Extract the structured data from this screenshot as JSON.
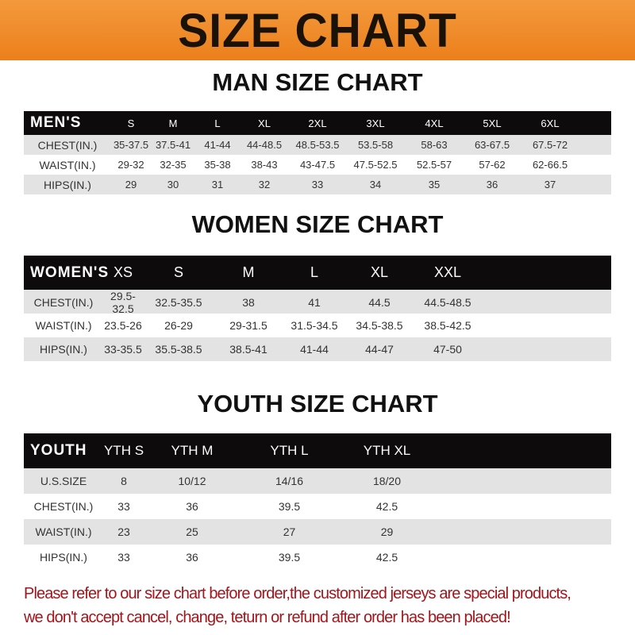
{
  "banner": "SIZE CHART",
  "men": {
    "title": "MAN SIZE CHART",
    "header": [
      "MEN'S",
      "S",
      "M",
      "L",
      "XL",
      "2XL",
      "3XL",
      "4XL",
      "5XL",
      "6XL"
    ],
    "rows": [
      [
        "CHEST(IN.)",
        "35-37.5",
        "37.5-41",
        "41-44",
        "44-48.5",
        "48.5-53.5",
        "53.5-58",
        "58-63",
        "63-67.5",
        "67.5-72"
      ],
      [
        "WAIST(IN.)",
        "29-32",
        "32-35",
        "35-38",
        "38-43",
        "43-47.5",
        "47.5-52.5",
        "52.5-57",
        "57-62",
        "62-66.5"
      ],
      [
        "HIPS(IN.)",
        "29",
        "30",
        "31",
        "32",
        "33",
        "34",
        "35",
        "36",
        "37"
      ]
    ]
  },
  "women": {
    "title": "WOMEN SIZE CHART",
    "header": [
      "WOMEN'S",
      "XS",
      "S",
      "M",
      "L",
      "XL",
      "XXL"
    ],
    "rows": [
      [
        "CHEST(IN.)",
        "29.5-32.5",
        "32.5-35.5",
        "38",
        "41",
        "44.5",
        "44.5-48.5"
      ],
      [
        "WAIST(IN.)",
        "23.5-26",
        "26-29",
        "29-31.5",
        "31.5-34.5",
        "34.5-38.5",
        "38.5-42.5"
      ],
      [
        "HIPS(IN.)",
        "33-35.5",
        "35.5-38.5",
        "38.5-41",
        "41-44",
        "44-47",
        "47-50"
      ]
    ]
  },
  "youth": {
    "title": "YOUTH SIZE CHART",
    "header": [
      "YOUTH",
      "YTH S",
      "YTH M",
      "YTH L",
      "YTH XL"
    ],
    "rows": [
      [
        "U.S.SIZE",
        "8",
        "10/12",
        "14/16",
        "18/20"
      ],
      [
        "CHEST(IN.)",
        "33",
        "36",
        "39.5",
        "42.5"
      ],
      [
        "WAIST(IN.)",
        "23",
        "25",
        "27",
        "29"
      ],
      [
        "HIPS(IN.)",
        "33",
        "36",
        "39.5",
        "42.5"
      ]
    ]
  },
  "note": {
    "line1": "Please refer to our size chart before order,the customized jerseys are special products,",
    "line2": "we don't accept cancel, change, teturn or refund after order has been placed!"
  },
  "colors": {
    "banner": "#ec7f1c",
    "header_row": "#0d0b0b",
    "stripe": "#e3e3e3",
    "note": "#a3151b"
  }
}
